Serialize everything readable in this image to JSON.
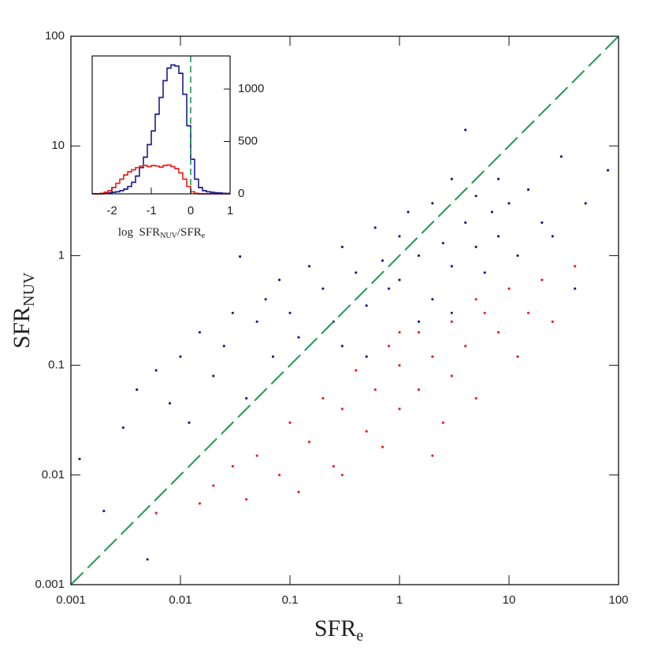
{
  "chart_data": [
    {
      "type": "scatter",
      "log_x": true,
      "log_y": true,
      "identity_line": true,
      "identity_color": "#1a9a55",
      "xlabel": {
        "text": "SFR",
        "sub": "e"
      },
      "ylabel": {
        "text": "SFR",
        "sub": "NUV"
      },
      "xlim": [
        0.001,
        100
      ],
      "ylim": [
        0.001,
        100
      ],
      "xticks": [
        0.001,
        0.01,
        0.1,
        1,
        10,
        100
      ],
      "yticks": [
        0.001,
        0.01,
        0.1,
        1,
        10,
        100
      ],
      "series": [
        {
          "color": "#1c1f8a",
          "x": [
            0.0012,
            0.002,
            0.003,
            0.004,
            0.005,
            0.006,
            0.008,
            0.01,
            0.012,
            0.015,
            0.02,
            0.025,
            0.03,
            0.035,
            0.04,
            0.05,
            0.06,
            0.07,
            0.08,
            0.1,
            0.12,
            0.15,
            0.2,
            0.25,
            0.3,
            0.4,
            0.5,
            0.6,
            0.7,
            0.8,
            1,
            1,
            1.2,
            1.5,
            2,
            2,
            2.5,
            3,
            3,
            4,
            4,
            5,
            5,
            6,
            7,
            8,
            8,
            10,
            12,
            15,
            20,
            25,
            30,
            40,
            50,
            80,
            0.3,
            0.5,
            1.5,
            3
          ],
          "y": [
            0.014,
            0.0047,
            0.027,
            0.06,
            0.0017,
            0.09,
            0.045,
            0.12,
            0.03,
            0.2,
            0.08,
            0.15,
            0.3,
            0.98,
            0.05,
            0.25,
            0.4,
            0.12,
            0.6,
            0.3,
            0.18,
            0.8,
            0.5,
            0.25,
            1.2,
            0.7,
            0.35,
            1.8,
            0.9,
            0.5,
            1.5,
            0.6,
            2.5,
            1.0,
            0.4,
            3.0,
            1.3,
            0.8,
            5,
            2,
            14,
            1.2,
            3.5,
            0.7,
            2.5,
            5,
            1.5,
            3,
            1,
            4,
            2,
            1.5,
            8,
            0.5,
            3,
            6,
            0.15,
            0.12,
            0.25,
            0.3
          ]
        },
        {
          "color": "#e8221e",
          "x": [
            0.006,
            0.015,
            0.02,
            0.03,
            0.04,
            0.05,
            0.08,
            0.1,
            0.12,
            0.15,
            0.2,
            0.25,
            0.3,
            0.4,
            0.5,
            0.6,
            0.8,
            1,
            1,
            1.5,
            1.5,
            2,
            2.5,
            3,
            3,
            4,
            5,
            6,
            8,
            10,
            12,
            15,
            20,
            25,
            40,
            0.7,
            2,
            1,
            0.3,
            5
          ],
          "y": [
            0.0045,
            0.0055,
            0.008,
            0.012,
            0.006,
            0.015,
            0.01,
            0.03,
            0.007,
            0.02,
            0.05,
            0.012,
            0.04,
            0.09,
            0.025,
            0.06,
            0.15,
            0.04,
            0.1,
            0.2,
            0.06,
            0.12,
            0.03,
            0.25,
            0.08,
            0.15,
            0.05,
            0.3,
            0.2,
            0.5,
            0.12,
            0.3,
            0.6,
            0.25,
            0.8,
            0.018,
            0.015,
            0.2,
            0.01,
            0.4
          ]
        }
      ]
    },
    {
      "type": "histogram",
      "xlabel": {
        "text": "log  SFR",
        "sub": "NUV",
        "text2": "/SFR",
        "sub2": "e"
      },
      "xlim": [
        -2.5,
        1
      ],
      "ylim": [
        0,
        1316
      ],
      "xticks": [
        -2,
        -1,
        0,
        1
      ],
      "yticks": [
        0,
        500,
        1000
      ],
      "marker_x": 0,
      "marker_color": "#1a9a55",
      "bins": [
        -2.5,
        -2.4,
        -2.3,
        -2.2,
        -2.1,
        -2.0,
        -1.9,
        -1.8,
        -1.7,
        -1.6,
        -1.5,
        -1.4,
        -1.3,
        -1.2,
        -1.1,
        -1.0,
        -0.9,
        -0.8,
        -0.7,
        -0.6,
        -0.5,
        -0.4,
        -0.3,
        -0.2,
        -0.1,
        0.0,
        0.1,
        0.2,
        0.3,
        0.4,
        0.5,
        0.6,
        0.7,
        0.8,
        0.9,
        1.0
      ],
      "series": [
        {
          "color": "#1c1f8a",
          "values": [
            0,
            0,
            0,
            5,
            10,
            15,
            20,
            30,
            45,
            70,
            110,
            170,
            250,
            350,
            470,
            600,
            760,
            920,
            1080,
            1200,
            1230,
            1220,
            1150,
            950,
            650,
            330,
            140,
            60,
            30,
            20,
            15,
            10,
            8,
            5,
            3
          ]
        },
        {
          "color": "#e8221e",
          "values": [
            0,
            0,
            5,
            15,
            30,
            60,
            100,
            140,
            180,
            210,
            230,
            250,
            265,
            270,
            260,
            270,
            265,
            255,
            270,
            275,
            260,
            240,
            200,
            140,
            70,
            20,
            5,
            0,
            0,
            0,
            0,
            0,
            0,
            0,
            0
          ]
        }
      ]
    }
  ]
}
